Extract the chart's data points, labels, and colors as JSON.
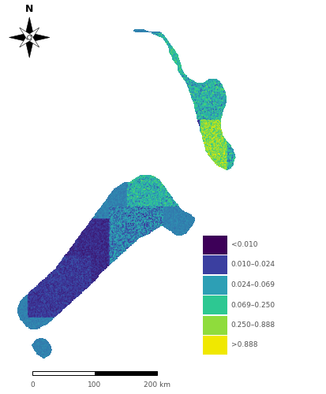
{
  "legend_colors": [
    "#3d0058",
    "#3b3fa0",
    "#2d9fb5",
    "#2dc892",
    "#8fdc3c",
    "#f0e800"
  ],
  "legend_labels": [
    "<0.010",
    "0.010–0.024",
    "0.024–0.069",
    "0.069–0.250",
    "0.250–0.888",
    ">0.888"
  ],
  "background_color": "#ffffff",
  "text_color": "#505050",
  "map_bg": "#ffffff",
  "north_island_color": "#2dc892",
  "south_island_color": "#3b3fa0",
  "figsize": [
    4.14,
    5.0
  ],
  "dpi": 100
}
